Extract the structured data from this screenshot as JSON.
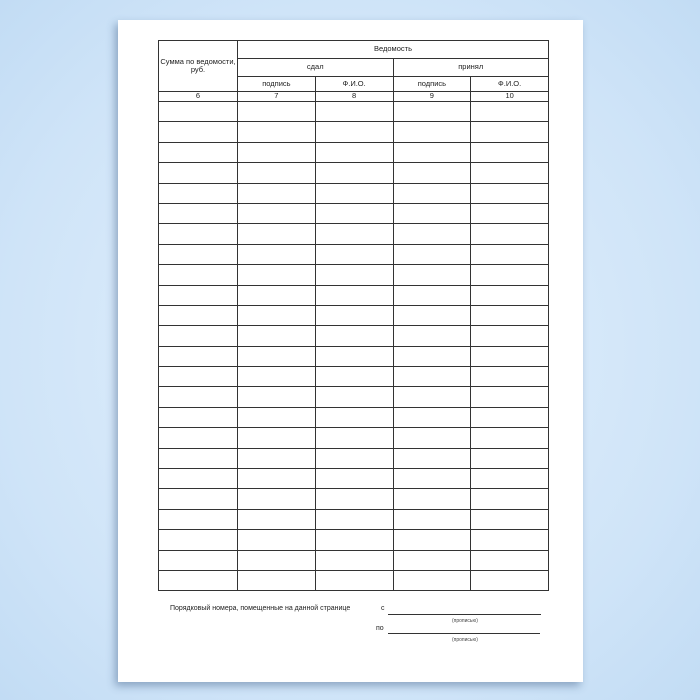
{
  "table": {
    "sum_header": "Сумма по ведомости, руб.",
    "vedomost": "Ведомость",
    "gave": "сдал",
    "received": "принял",
    "signature": "подпись",
    "fio": "Ф.И.О.",
    "col_numbers": [
      "6",
      "7",
      "8",
      "9",
      "10"
    ],
    "empty_rows": 24
  },
  "footer": {
    "label": "Порядковый номера, помещенные на данной странице",
    "from": "с",
    "to": "по",
    "words_hint_1": "(прописью)",
    "words_hint_2": "(прописью)"
  }
}
